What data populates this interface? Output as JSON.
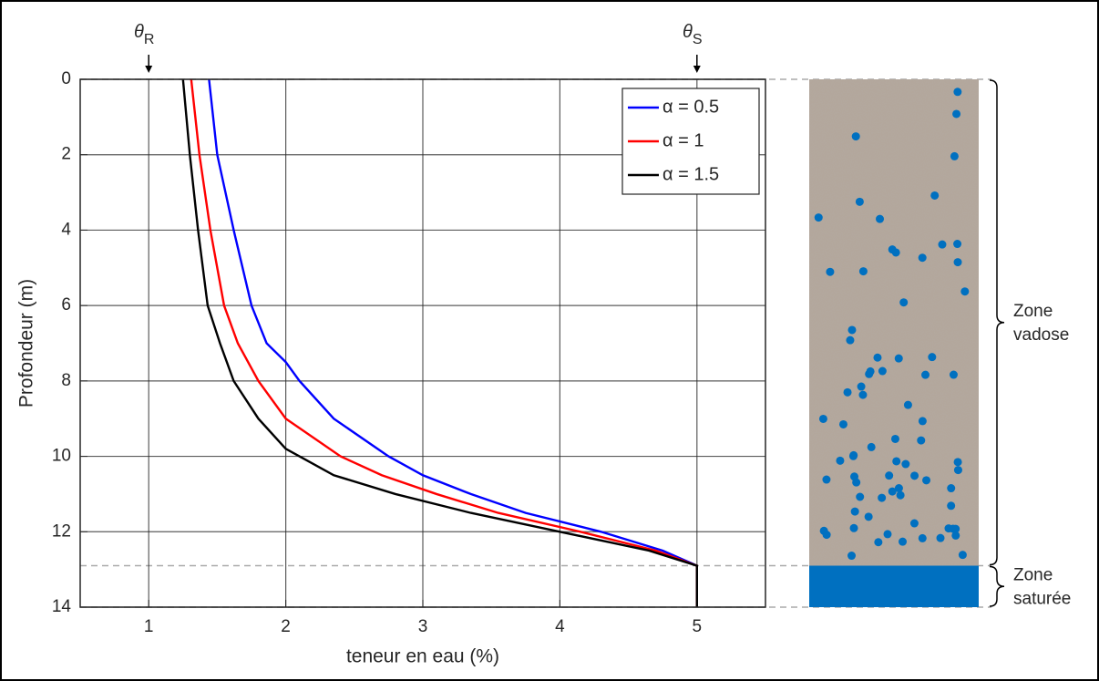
{
  "chart_data": {
    "type": "line",
    "xlabel": "teneur en eau (%)",
    "ylabel": "Profondeur (m)",
    "xlim": [
      0.5,
      5.5
    ],
    "ylim": [
      0,
      14
    ],
    "y_reversed": true,
    "xticks": [
      1,
      2,
      3,
      4,
      5
    ],
    "yticks": [
      0,
      2,
      4,
      6,
      8,
      10,
      12,
      14
    ],
    "grid": true,
    "legend": "top right",
    "series": [
      {
        "name": "α = 0.5",
        "color": "#0000ff",
        "x": [
          1.44,
          1.5,
          1.62,
          1.75,
          1.86,
          2.0,
          2.1,
          2.35,
          2.75,
          3.0,
          3.35,
          3.75,
          4.3,
          4.75,
          5.0,
          5.0
        ],
        "values": [
          0,
          2,
          4,
          6,
          7,
          7.5,
          8,
          9,
          10,
          10.5,
          11,
          11.5,
          12,
          12.5,
          12.9,
          14
        ]
      },
      {
        "name": "α = 1",
        "color": "#ff0000",
        "x": [
          1.31,
          1.37,
          1.45,
          1.55,
          1.65,
          1.8,
          2.0,
          2.4,
          2.7,
          3.1,
          3.55,
          4.15,
          4.7,
          5.0,
          5.0
        ],
        "values": [
          0,
          2,
          4,
          6,
          7,
          8,
          9,
          10,
          10.5,
          11,
          11.5,
          12,
          12.5,
          12.9,
          14
        ]
      },
      {
        "name": "α = 1.5",
        "color": "#000000",
        "x": [
          1.25,
          1.3,
          1.36,
          1.43,
          1.52,
          1.62,
          1.8,
          2.0,
          2.35,
          2.8,
          3.35,
          4.0,
          4.65,
          5.0,
          5.0
        ],
        "values": [
          0,
          2,
          4,
          6,
          7,
          8,
          9,
          9.8,
          10.5,
          11,
          11.5,
          12,
          12.5,
          12.9,
          14
        ]
      }
    ],
    "annotations": [
      {
        "symbol": "θ",
        "sub": "R",
        "x": 1
      },
      {
        "symbol": "θ",
        "sub": "S",
        "x": 5
      }
    ],
    "water_table_depth": 12.9,
    "water_color": "#0070c0",
    "soil_color": "#b3a79c",
    "zones": [
      {
        "lines": [
          "Zone",
          "vadose"
        ]
      },
      {
        "lines": [
          "Zone",
          "saturée"
        ]
      }
    ]
  }
}
